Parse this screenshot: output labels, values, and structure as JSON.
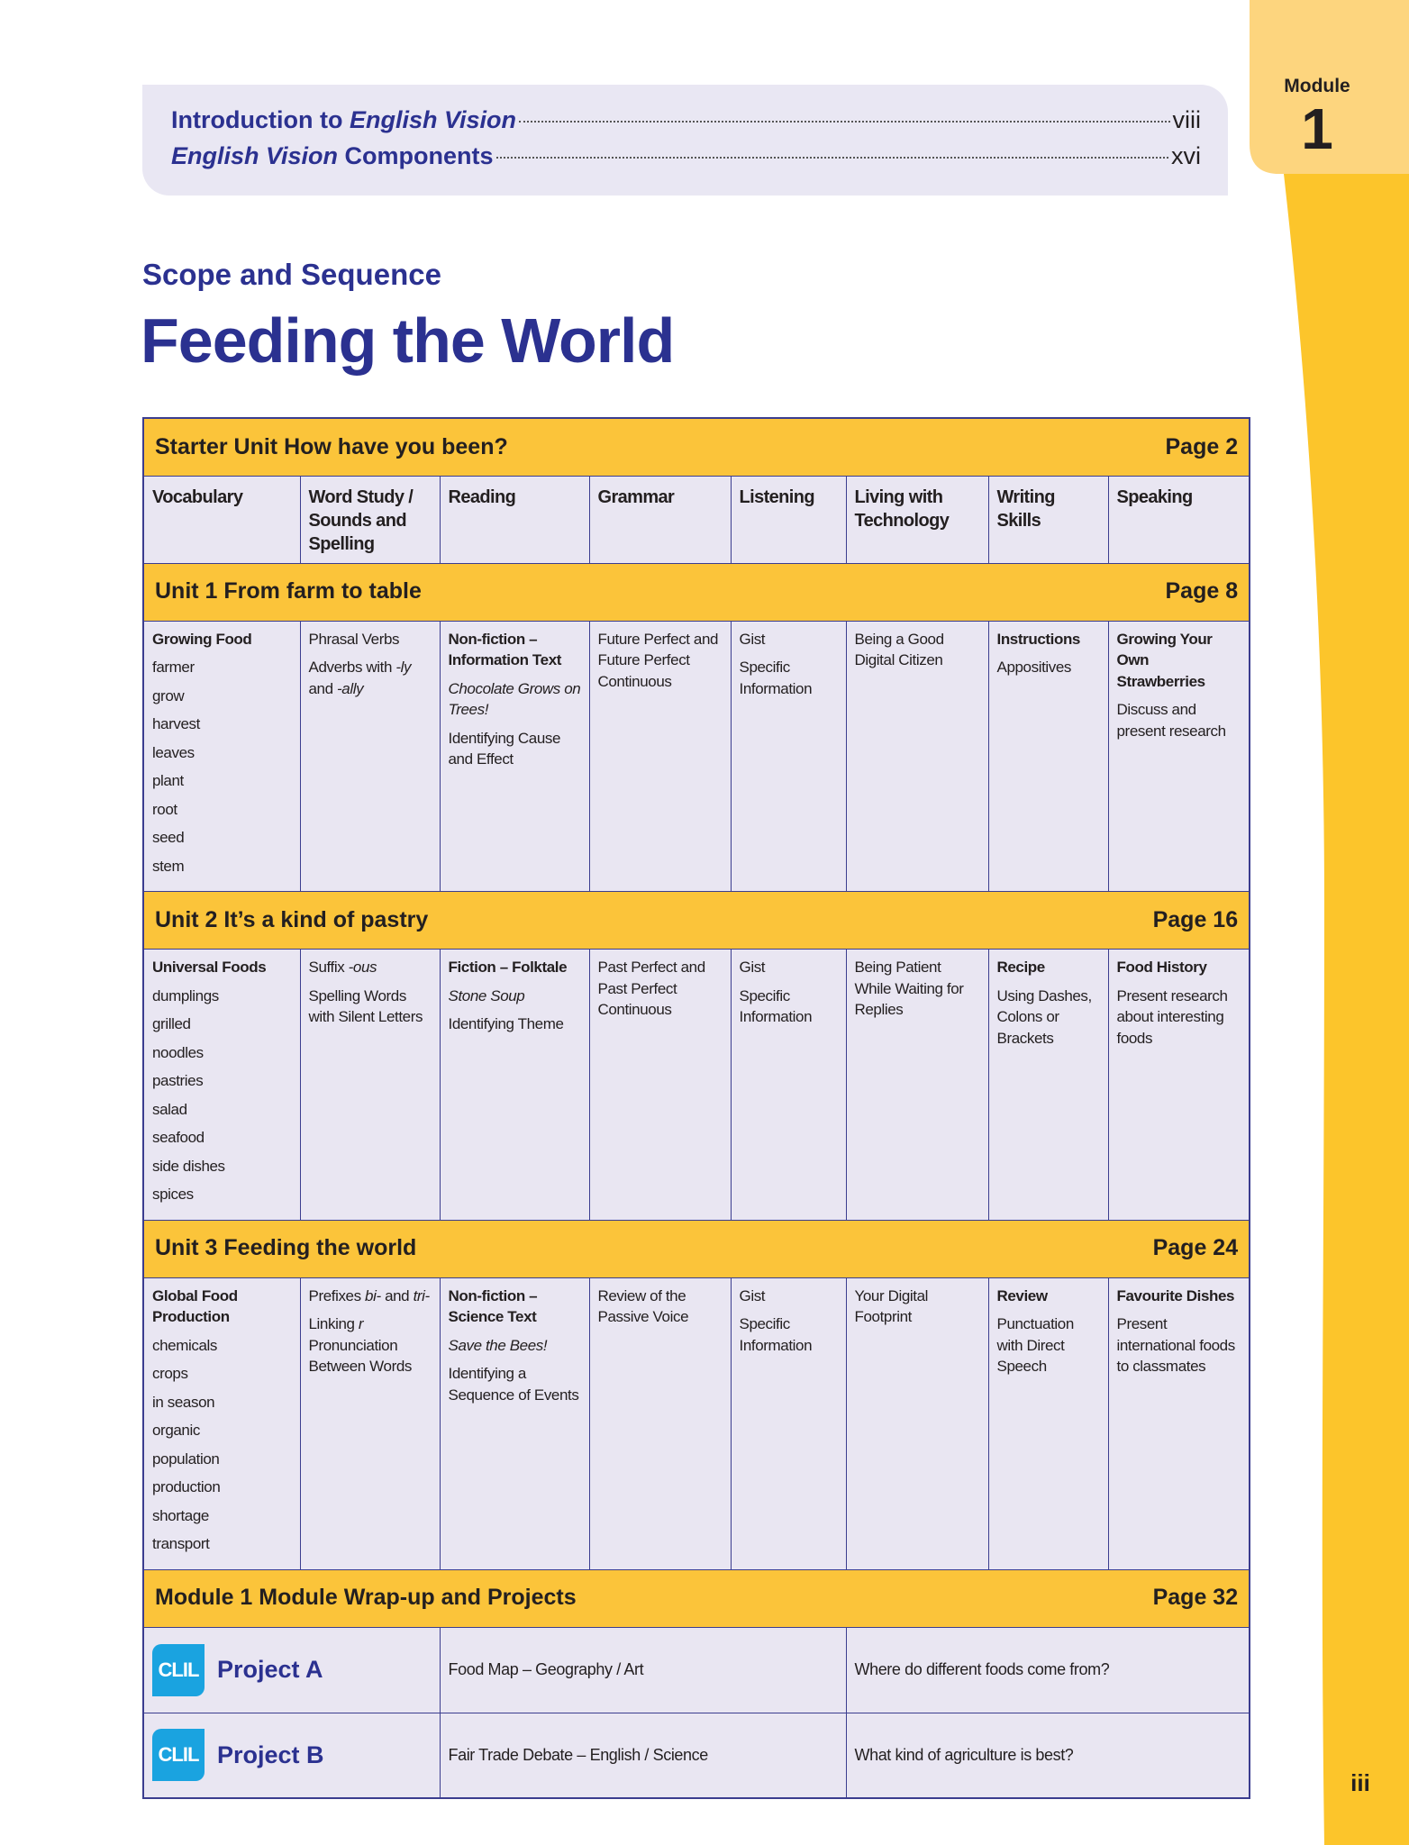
{
  "header": {
    "module_label": "Module",
    "module_number": "1",
    "toc": [
      {
        "title": [
          "Introduction to ",
          {
            "text": "English Vision",
            "style": "italic"
          }
        ],
        "page": "viii"
      },
      {
        "title": [
          {
            "text": "English Vision",
            "style": "italic"
          },
          " Components"
        ],
        "page": "xvi"
      }
    ]
  },
  "section_label": "Scope and Sequence",
  "title": "Feeding the World",
  "table": {
    "starter": {
      "title": "Starter Unit  How have you been?",
      "page": "Page 2"
    },
    "columns": [
      "Vocabulary",
      "Word Study / Sounds and Spelling",
      "Reading",
      "Grammar",
      "Listening",
      "Living with Technology",
      "Writing Skills",
      "Speaking"
    ],
    "units": [
      {
        "title": "Unit 1  From farm to table",
        "page": "Page 8",
        "cells": [
          [
            {
              "text": "Growing Food",
              "style": "bold"
            },
            "farmer",
            "grow",
            "harvest",
            "leaves",
            "plant",
            "root",
            "seed",
            "stem"
          ],
          [
            "Phrasal Verbs",
            [
              "Adverbs with ",
              {
                "text": "-ly",
                "style": "italic"
              },
              " and ",
              {
                "text": "-ally",
                "style": "italic"
              }
            ]
          ],
          [
            {
              "text": "Non-fiction – Information Text",
              "style": "bold"
            },
            {
              "text": "Chocolate Grows on Trees!",
              "style": "italic"
            },
            "Identifying Cause and Effect"
          ],
          [
            "Future Perfect and Future Perfect Continuous"
          ],
          [
            "Gist",
            "Specific Information"
          ],
          [
            "Being a Good Digital Citizen"
          ],
          [
            {
              "text": "Instructions",
              "style": "bold"
            },
            "Appositives"
          ],
          [
            {
              "text": "Growing Your Own Strawberries",
              "style": "bold"
            },
            "Discuss and present research"
          ]
        ]
      },
      {
        "title": "Unit 2  It’s a kind of pastry",
        "page": "Page 16",
        "cells": [
          [
            {
              "text": "Universal Foods",
              "style": "bold"
            },
            "dumplings",
            "grilled",
            "noodles",
            "pastries",
            "salad",
            "seafood",
            "side dishes",
            "spices"
          ],
          [
            [
              "Suffix ",
              {
                "text": "-ous",
                "style": "italic"
              }
            ],
            "Spelling Words with Silent Letters"
          ],
          [
            {
              "text": "Fiction – Folktale",
              "style": "bold"
            },
            {
              "text": "Stone Soup",
              "style": "italic"
            },
            "Identifying Theme"
          ],
          [
            "Past Perfect and Past Perfect Continuous"
          ],
          [
            "Gist",
            "Specific Information"
          ],
          [
            "Being Patient While Waiting for Replies"
          ],
          [
            {
              "text": "Recipe",
              "style": "bold"
            },
            "Using Dashes, Colons or Brackets"
          ],
          [
            {
              "text": "Food History",
              "style": "bold"
            },
            "Present research about interesting foods"
          ]
        ]
      },
      {
        "title": "Unit 3  Feeding the world",
        "page": "Page 24",
        "cells": [
          [
            {
              "text": "Global Food Production",
              "style": "bold"
            },
            "chemicals",
            "crops",
            "in season",
            "organic",
            "population",
            "production",
            "shortage",
            "transport"
          ],
          [
            [
              "Prefixes ",
              {
                "text": "bi-",
                "style": "italic"
              },
              " and ",
              {
                "text": "tri-",
                "style": "italic"
              }
            ],
            [
              "Linking ",
              {
                "text": "r",
                "style": "italic"
              },
              " Pronunciation Between Words"
            ]
          ],
          [
            {
              "text": "Non-fiction – Science Text",
              "style": "bold"
            },
            {
              "text": "Save the Bees!",
              "style": "italic"
            },
            "Identifying a Sequence of Events"
          ],
          [
            "Review of the Passive Voice"
          ],
          [
            "Gist",
            "Specific Information"
          ],
          [
            "Your Digital Footprint"
          ],
          [
            {
              "text": "Review",
              "style": "bold"
            },
            "Punctuation with Direct Speech"
          ],
          [
            {
              "text": "Favourite Dishes",
              "style": "bold"
            },
            "Present international foods to classmates"
          ]
        ]
      }
    ],
    "wrap_up": {
      "title": "Module 1  Module Wrap-up and Projects",
      "page": "Page 32"
    },
    "projects": [
      {
        "badge": "CLIL",
        "name": "Project A",
        "topic": "Food Map  – Geography / Art",
        "question": "Where do different foods come from?"
      },
      {
        "badge": "CLIL",
        "name": "Project B",
        "topic": "Fair Trade Debate – English / Science",
        "question": "What kind of agriculture is best?"
      }
    ]
  },
  "page_number": "iii"
}
